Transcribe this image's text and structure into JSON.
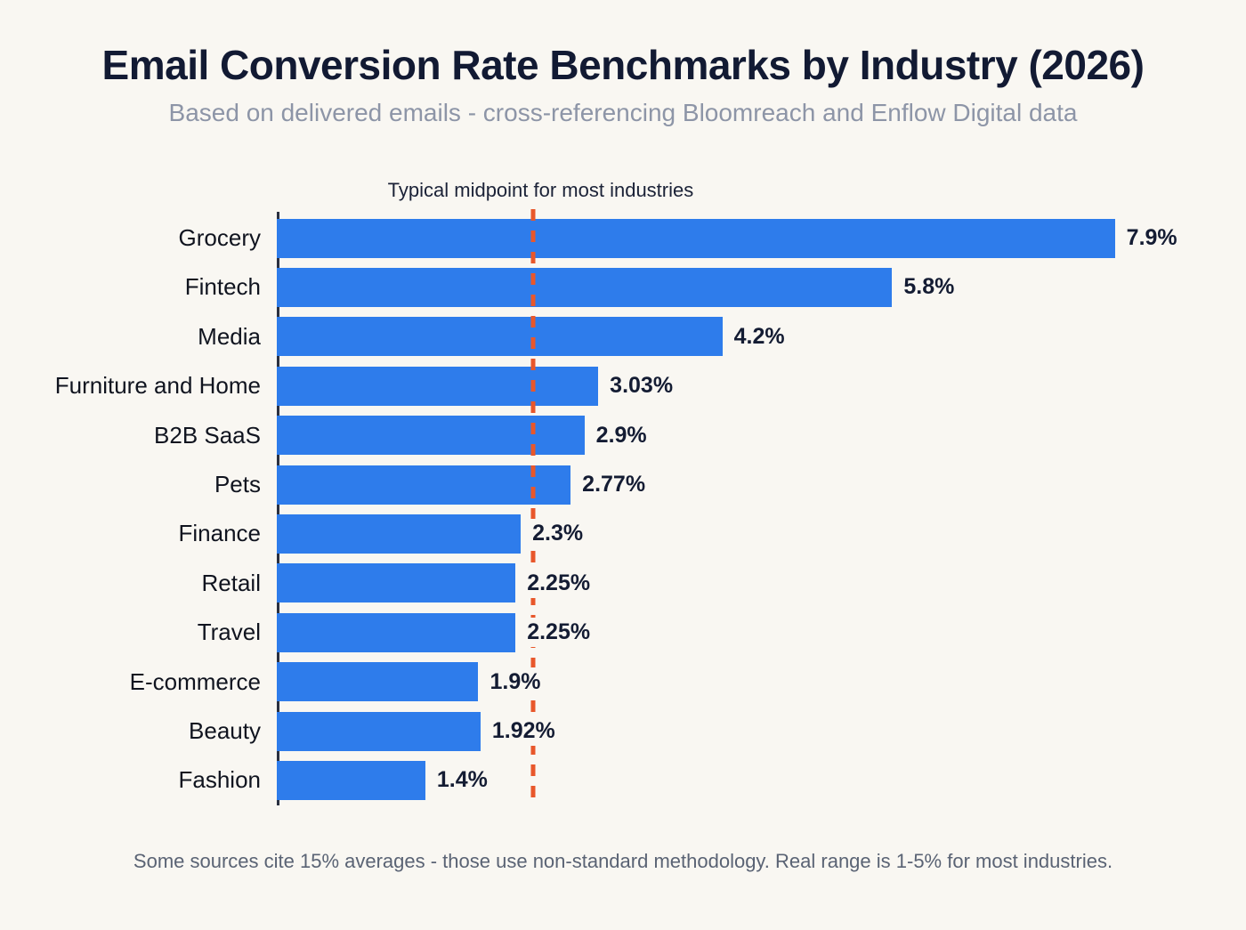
{
  "page": {
    "title": "Email Conversion Rate Benchmarks by Industry (2026)",
    "subtitle": "Based on delivered emails - cross-referencing Bloomreach and Enflow Digital data",
    "footnote": "Some sources cite 15% averages - those use non-standard methodology. Real range is 1-5% for most industries."
  },
  "chart_data": {
    "type": "bar",
    "orientation": "horizontal",
    "title": "Email Conversion Rate Benchmarks by Industry (2026)",
    "subtitle": "Based on delivered emails - cross-referencing Bloomreach and Enflow Digital data",
    "categories": [
      "Grocery",
      "Fintech",
      "Media",
      "Furniture and Home",
      "B2B SaaS",
      "Pets",
      "Finance",
      "Retail",
      "Travel",
      "E-commerce",
      "Beauty",
      "Fashion"
    ],
    "values": [
      7.9,
      5.8,
      4.2,
      3.03,
      2.9,
      2.77,
      2.3,
      2.25,
      2.25,
      1.9,
      1.92,
      1.4
    ],
    "value_labels": [
      "7.9%",
      "5.8%",
      "4.2%",
      "3.03%",
      "2.9%",
      "2.77%",
      "2.3%",
      "2.25%",
      "2.25%",
      "1.9%",
      "1.92%",
      "1.4%"
    ],
    "xlim": [
      0,
      9.1
    ],
    "grid": false,
    "legend": false,
    "reference_line": {
      "label": "Typical midpoint for most industries",
      "value": 2.42,
      "style": "dashed-vertical"
    },
    "colors": {
      "bar": "#2e7ceb",
      "reference_line": "#e8572b",
      "title": "#121a33",
      "subtitle": "#8d95a7",
      "category_label": "#10141f",
      "value_label": "#141c33",
      "axis": "#2a3040",
      "background": "#f9f7f2",
      "footnote": "#5a6374"
    }
  }
}
